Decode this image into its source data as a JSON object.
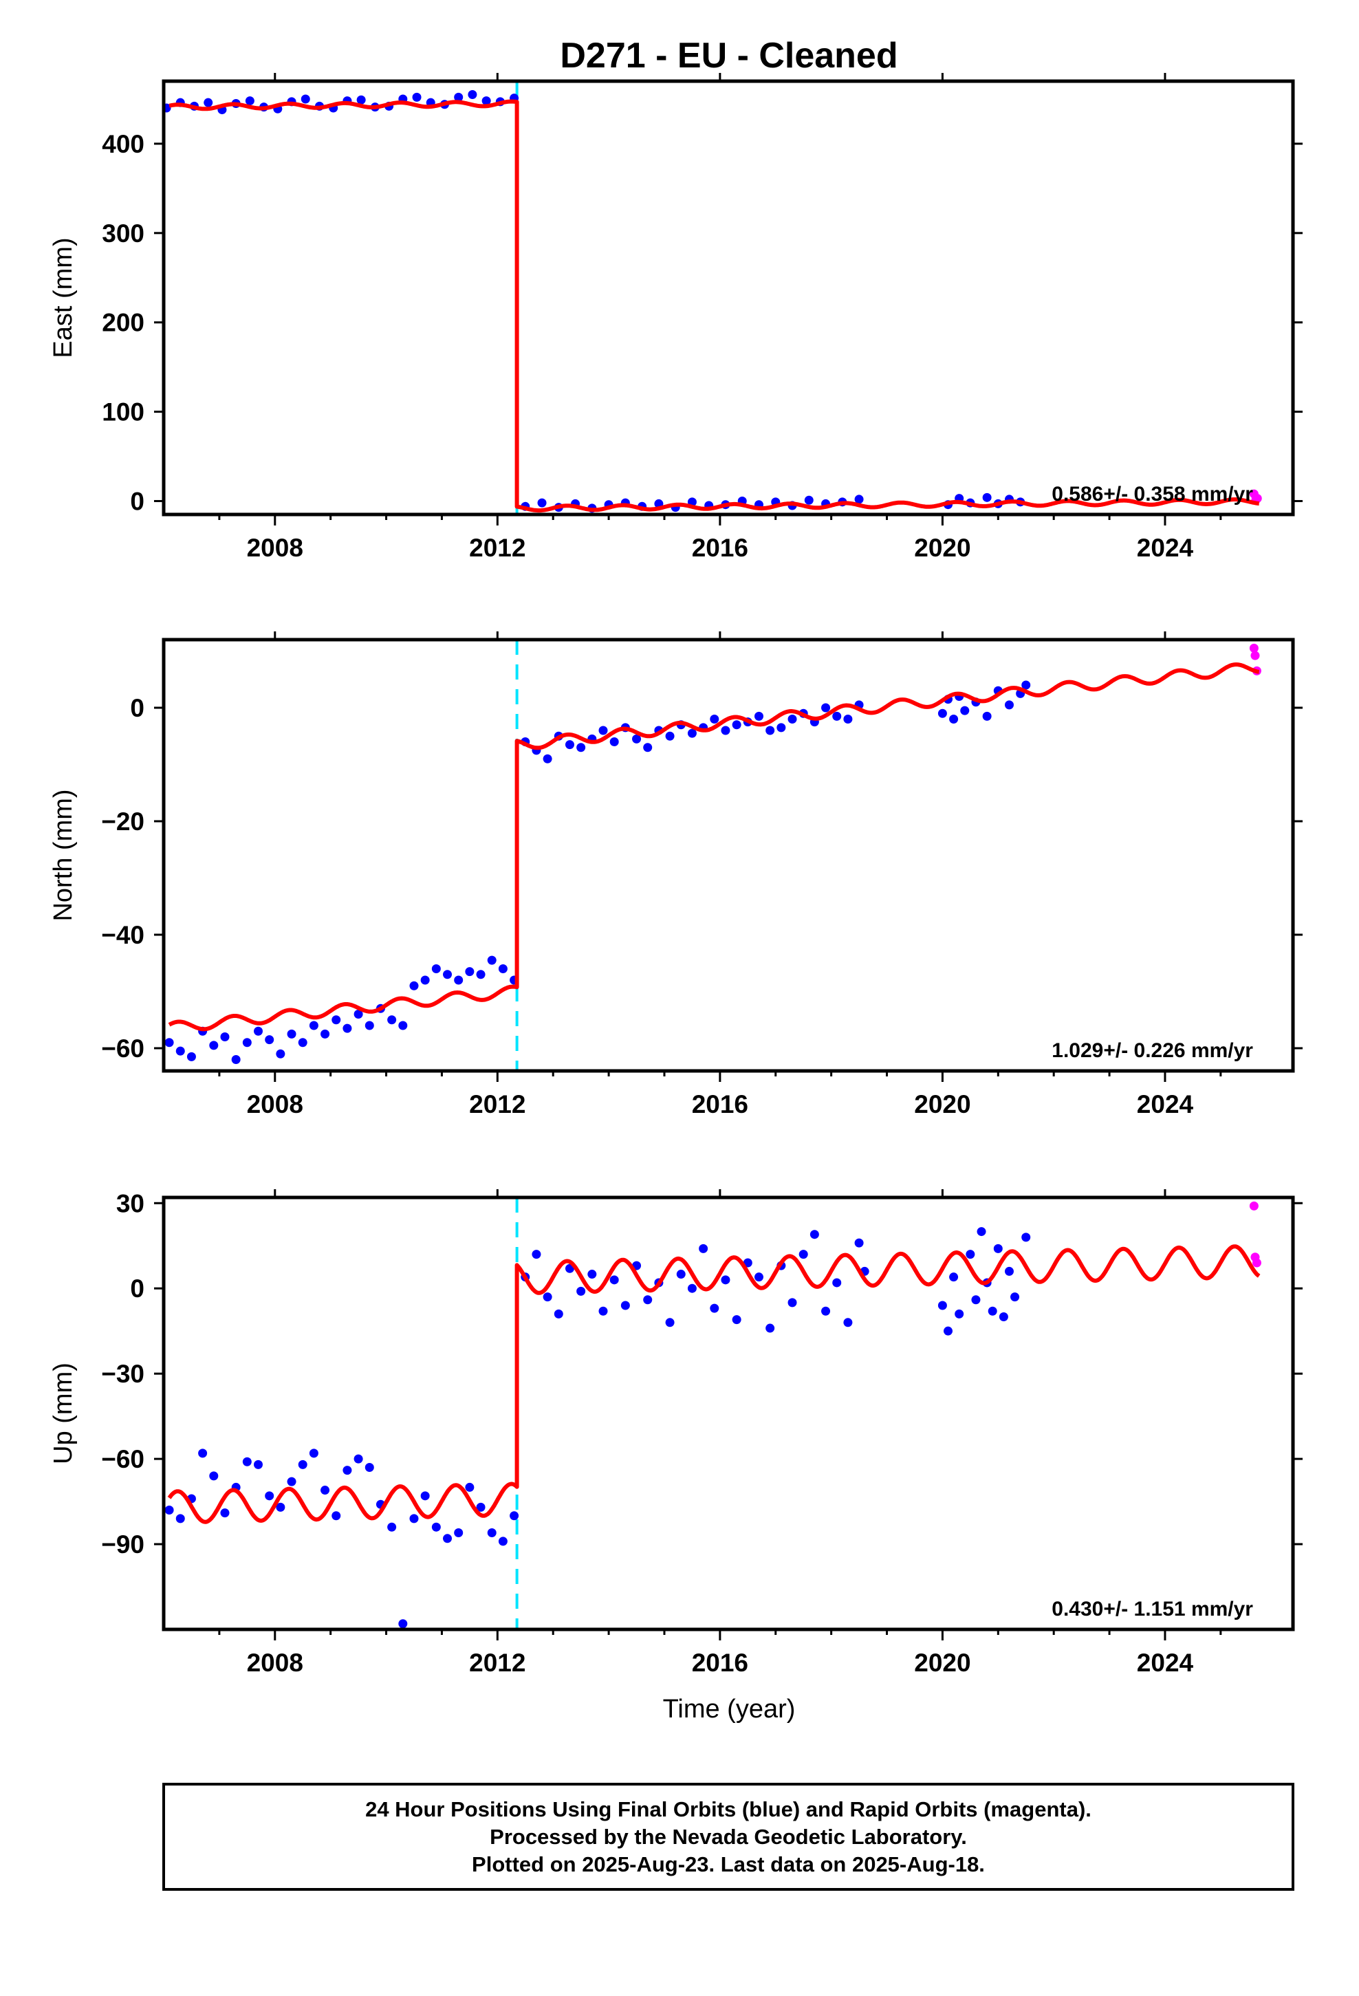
{
  "title": "D271  - EU - Cleaned",
  "xlabel": "Time (year)",
  "footer": {
    "line1": "24 Hour Positions Using Final Orbits (blue) and Rapid Orbits (magenta).",
    "line2": "Processed by the Nevada Geodetic Laboratory.",
    "line3": "Plotted on 2025-Aug-23. Last data on 2025-Aug-18."
  },
  "colors": {
    "final_orbits": "#0000ff",
    "rapid_orbits": "#ff00ff",
    "model": "#ff0000",
    "offset_marker": "#00e5ff",
    "frame": "#000000"
  },
  "chart_data": [
    {
      "type": "scatter",
      "component": "east",
      "ylabel": "East (mm)",
      "xlim": [
        2006.0,
        2026.3
      ],
      "ylim": [
        -15,
        470
      ],
      "xticks": [
        2008,
        2012,
        2016,
        2020,
        2024
      ],
      "yticks": [
        0,
        100,
        200,
        300,
        400
      ],
      "rate_label": "0.586+/- 0.358 mm/yr",
      "offset_year": 2012.35,
      "model": {
        "pre_intercept": 441,
        "pre_slope": 0.6,
        "offset": -453,
        "post_slope": 0.586,
        "annual_amp": 2.5
      },
      "final_orbits": [
        [
          2006.05,
          440
        ],
        [
          2006.3,
          446
        ],
        [
          2006.55,
          442
        ],
        [
          2006.8,
          446
        ],
        [
          2007.05,
          438
        ],
        [
          2007.3,
          445
        ],
        [
          2007.55,
          448
        ],
        [
          2007.8,
          441
        ],
        [
          2008.05,
          439
        ],
        [
          2008.3,
          447
        ],
        [
          2008.55,
          450
        ],
        [
          2008.8,
          442
        ],
        [
          2009.05,
          440
        ],
        [
          2009.3,
          448
        ],
        [
          2009.55,
          449
        ],
        [
          2009.8,
          441
        ],
        [
          2010.05,
          442
        ],
        [
          2010.3,
          450
        ],
        [
          2010.55,
          452
        ],
        [
          2010.8,
          446
        ],
        [
          2011.05,
          444
        ],
        [
          2011.3,
          452
        ],
        [
          2011.55,
          455
        ],
        [
          2011.8,
          448
        ],
        [
          2012.05,
          447
        ],
        [
          2012.3,
          451
        ],
        [
          2012.5,
          -6
        ],
        [
          2012.8,
          -2
        ],
        [
          2013.1,
          -7
        ],
        [
          2013.4,
          -3
        ],
        [
          2013.7,
          -8
        ],
        [
          2014.0,
          -4
        ],
        [
          2014.3,
          -2
        ],
        [
          2014.6,
          -6
        ],
        [
          2014.9,
          -3
        ],
        [
          2015.2,
          -7
        ],
        [
          2015.5,
          -1
        ],
        [
          2015.8,
          -5
        ],
        [
          2016.1,
          -4
        ],
        [
          2016.4,
          0
        ],
        [
          2016.7,
          -4
        ],
        [
          2017.0,
          -1
        ],
        [
          2017.3,
          -5
        ],
        [
          2017.6,
          1
        ],
        [
          2017.9,
          -3
        ],
        [
          2018.2,
          -1
        ],
        [
          2018.5,
          2
        ],
        [
          2020.1,
          -4
        ],
        [
          2020.3,
          3
        ],
        [
          2020.5,
          -2
        ],
        [
          2020.8,
          4
        ],
        [
          2021.0,
          -3
        ],
        [
          2021.2,
          2
        ],
        [
          2021.4,
          -1
        ]
      ],
      "rapid_orbits": [
        [
          2025.6,
          8
        ],
        [
          2025.63,
          1
        ],
        [
          2025.66,
          3
        ]
      ]
    },
    {
      "type": "scatter",
      "component": "north",
      "ylabel": "North (mm)",
      "xlim": [
        2006.0,
        2026.3
      ],
      "ylim": [
        -64,
        12
      ],
      "xticks": [
        2008,
        2012,
        2016,
        2020,
        2024
      ],
      "yticks": [
        -60,
        -40,
        -20,
        0
      ],
      "rate_label": "1.029+/- 0.226 mm/yr",
      "offset_year": 2012.35,
      "model": {
        "pre_intercept": -56.5,
        "pre_slope": 1.029,
        "offset": 43.4,
        "post_slope": 1.029,
        "annual_amp": 0.9
      },
      "final_orbits": [
        [
          2006.1,
          -59
        ],
        [
          2006.3,
          -60.5
        ],
        [
          2006.5,
          -61.5
        ],
        [
          2006.7,
          -57
        ],
        [
          2006.9,
          -59.5
        ],
        [
          2007.1,
          -58
        ],
        [
          2007.3,
          -62
        ],
        [
          2007.5,
          -59
        ],
        [
          2007.7,
          -57
        ],
        [
          2007.9,
          -58.5
        ],
        [
          2008.1,
          -61
        ],
        [
          2008.3,
          -57.5
        ],
        [
          2008.5,
          -59
        ],
        [
          2008.7,
          -56
        ],
        [
          2008.9,
          -57.5
        ],
        [
          2009.1,
          -55
        ],
        [
          2009.3,
          -56.5
        ],
        [
          2009.5,
          -54
        ],
        [
          2009.7,
          -56
        ],
        [
          2009.9,
          -53
        ],
        [
          2010.1,
          -55
        ],
        [
          2010.3,
          -56
        ],
        [
          2010.5,
          -49
        ],
        [
          2010.7,
          -48
        ],
        [
          2010.9,
          -46
        ],
        [
          2011.1,
          -47
        ],
        [
          2011.3,
          -48
        ],
        [
          2011.5,
          -46.5
        ],
        [
          2011.7,
          -47
        ],
        [
          2011.9,
          -44.5
        ],
        [
          2012.1,
          -46
        ],
        [
          2012.3,
          -48
        ],
        [
          2012.5,
          -6
        ],
        [
          2012.7,
          -7.5
        ],
        [
          2012.9,
          -9
        ],
        [
          2013.1,
          -5
        ],
        [
          2013.3,
          -6.5
        ],
        [
          2013.5,
          -7
        ],
        [
          2013.7,
          -5.5
        ],
        [
          2013.9,
          -4
        ],
        [
          2014.1,
          -6
        ],
        [
          2014.3,
          -3.5
        ],
        [
          2014.5,
          -5.5
        ],
        [
          2014.7,
          -7
        ],
        [
          2014.9,
          -4
        ],
        [
          2015.1,
          -5
        ],
        [
          2015.3,
          -3
        ],
        [
          2015.5,
          -4.5
        ],
        [
          2015.7,
          -3.5
        ],
        [
          2015.9,
          -2
        ],
        [
          2016.1,
          -4
        ],
        [
          2016.3,
          -3
        ],
        [
          2016.5,
          -2.5
        ],
        [
          2016.7,
          -1.5
        ],
        [
          2016.9,
          -4
        ],
        [
          2017.1,
          -3.5
        ],
        [
          2017.3,
          -2
        ],
        [
          2017.5,
          -1
        ],
        [
          2017.7,
          -2.5
        ],
        [
          2017.9,
          0
        ],
        [
          2018.1,
          -1.5
        ],
        [
          2018.3,
          -2
        ],
        [
          2018.5,
          0.5
        ],
        [
          2020.0,
          -1
        ],
        [
          2020.1,
          1.5
        ],
        [
          2020.2,
          -2
        ],
        [
          2020.3,
          2
        ],
        [
          2020.4,
          -0.5
        ],
        [
          2020.6,
          1
        ],
        [
          2020.8,
          -1.5
        ],
        [
          2021.0,
          3
        ],
        [
          2021.2,
          0.5
        ],
        [
          2021.4,
          2.5
        ],
        [
          2021.5,
          4
        ]
      ],
      "rapid_orbits": [
        [
          2025.6,
          10.5
        ],
        [
          2025.62,
          9.2
        ],
        [
          2025.65,
          6.5
        ]
      ]
    },
    {
      "type": "scatter",
      "component": "up",
      "ylabel": "Up (mm)",
      "xlim": [
        2006.0,
        2026.3
      ],
      "ylim": [
        -120,
        32
      ],
      "xticks": [
        2008,
        2012,
        2016,
        2020,
        2024
      ],
      "yticks": [
        -90,
        -60,
        -30,
        0,
        30
      ],
      "rate_label": "0.430+/- 1.151 mm/yr",
      "offset_year": 2012.35,
      "model": {
        "pre_intercept": -77,
        "pre_slope": 0.43,
        "offset": 78,
        "post_slope": 0.43,
        "annual_amp": 5.5
      },
      "final_orbits": [
        [
          2006.1,
          -78
        ],
        [
          2006.3,
          -81
        ],
        [
          2006.5,
          -74
        ],
        [
          2006.7,
          -58
        ],
        [
          2006.9,
          -66
        ],
        [
          2007.1,
          -79
        ],
        [
          2007.3,
          -70
        ],
        [
          2007.5,
          -61
        ],
        [
          2007.7,
          -62
        ],
        [
          2007.9,
          -73
        ],
        [
          2008.1,
          -77
        ],
        [
          2008.3,
          -68
        ],
        [
          2008.5,
          -62
        ],
        [
          2008.7,
          -58
        ],
        [
          2008.9,
          -71
        ],
        [
          2009.1,
          -80
        ],
        [
          2009.3,
          -64
        ],
        [
          2009.5,
          -60
        ],
        [
          2009.7,
          -63
        ],
        [
          2009.9,
          -76
        ],
        [
          2010.1,
          -84
        ],
        [
          2010.3,
          -118
        ],
        [
          2010.5,
          -81
        ],
        [
          2010.7,
          -73
        ],
        [
          2010.9,
          -84
        ],
        [
          2011.1,
          -88
        ],
        [
          2011.3,
          -86
        ],
        [
          2011.5,
          -70
        ],
        [
          2011.7,
          -77
        ],
        [
          2011.9,
          -86
        ],
        [
          2012.1,
          -89
        ],
        [
          2012.3,
          -80
        ],
        [
          2012.5,
          4
        ],
        [
          2012.7,
          12
        ],
        [
          2012.9,
          -3
        ],
        [
          2013.1,
          -9
        ],
        [
          2013.3,
          7
        ],
        [
          2013.5,
          -1
        ],
        [
          2013.7,
          5
        ],
        [
          2013.9,
          -8
        ],
        [
          2014.1,
          3
        ],
        [
          2014.3,
          -6
        ],
        [
          2014.5,
          8
        ],
        [
          2014.7,
          -4
        ],
        [
          2014.9,
          2
        ],
        [
          2015.1,
          -12
        ],
        [
          2015.3,
          5
        ],
        [
          2015.5,
          0
        ],
        [
          2015.7,
          14
        ],
        [
          2015.9,
          -7
        ],
        [
          2016.1,
          3
        ],
        [
          2016.3,
          -11
        ],
        [
          2016.5,
          9
        ],
        [
          2016.7,
          4
        ],
        [
          2016.9,
          -14
        ],
        [
          2017.1,
          8
        ],
        [
          2017.3,
          -5
        ],
        [
          2017.5,
          12
        ],
        [
          2017.7,
          19
        ],
        [
          2017.9,
          -8
        ],
        [
          2018.1,
          2
        ],
        [
          2018.3,
          -12
        ],
        [
          2018.5,
          16
        ],
        [
          2018.6,
          6
        ],
        [
          2020.0,
          -6
        ],
        [
          2020.1,
          -15
        ],
        [
          2020.2,
          4
        ],
        [
          2020.3,
          -9
        ],
        [
          2020.5,
          12
        ],
        [
          2020.6,
          -4
        ],
        [
          2020.7,
          20
        ],
        [
          2020.8,
          2
        ],
        [
          2020.9,
          -8
        ],
        [
          2021.0,
          14
        ],
        [
          2021.1,
          -10
        ],
        [
          2021.2,
          6
        ],
        [
          2021.3,
          -3
        ],
        [
          2021.5,
          18
        ]
      ],
      "rapid_orbits": [
        [
          2025.6,
          29
        ],
        [
          2025.62,
          11
        ],
        [
          2025.65,
          9
        ]
      ]
    }
  ]
}
